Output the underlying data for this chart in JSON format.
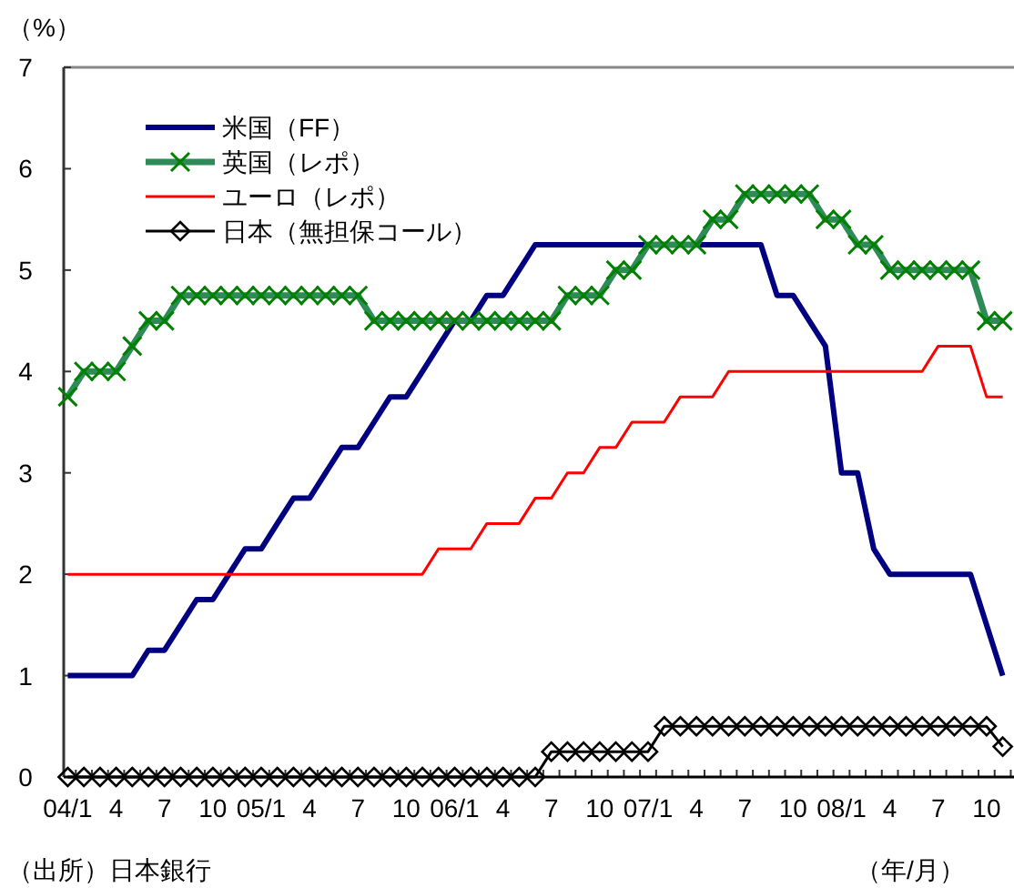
{
  "chart_data": {
    "type": "line",
    "ylabel": "（%）",
    "xlabel": "（年/月）",
    "annotations": [
      "（出所）日本銀行"
    ],
    "categories": [
      "04/1",
      null,
      null,
      "4",
      null,
      null,
      "7",
      null,
      null,
      "10",
      null,
      null,
      "05/1",
      null,
      null,
      "4",
      null,
      null,
      "7",
      null,
      null,
      "10",
      null,
      null,
      "06/1",
      null,
      null,
      "4",
      null,
      null,
      "7",
      null,
      null,
      "10",
      null,
      null,
      "07/1",
      null,
      null,
      "4",
      null,
      null,
      "7",
      null,
      null,
      "10",
      null,
      null,
      "08/1",
      null,
      null,
      "4",
      null,
      null,
      "7",
      null,
      null,
      "10",
      null
    ],
    "ylim": [
      0,
      7
    ],
    "yticks": [
      0,
      1,
      2,
      3,
      4,
      5,
      6,
      7
    ],
    "grid": false,
    "legend": "top left",
    "series": [
      {
        "name": "米国（FF）",
        "color": "#000080",
        "marker": "none",
        "values": [
          1,
          1,
          1,
          1,
          1,
          1.25,
          1.25,
          1.5,
          1.75,
          1.75,
          2,
          2.25,
          2.25,
          2.5,
          2.75,
          2.75,
          3,
          3.25,
          3.25,
          3.5,
          3.75,
          3.75,
          4,
          4.25,
          4.5,
          4.5,
          4.75,
          4.75,
          5,
          5.25,
          5.25,
          5.25,
          5.25,
          5.25,
          5.25,
          5.25,
          5.25,
          5.25,
          5.25,
          5.25,
          5.25,
          5.25,
          5.25,
          5.25,
          4.75,
          4.75,
          4.5,
          4.25,
          3,
          3,
          2.25,
          2,
          2,
          2,
          2,
          2,
          2,
          1.5,
          1
        ]
      },
      {
        "name": "英国（レポ）",
        "color": "#2e8b57",
        "marker": "cross",
        "values": [
          3.75,
          4,
          4,
          4,
          4.25,
          4.5,
          4.5,
          4.75,
          4.75,
          4.75,
          4.75,
          4.75,
          4.75,
          4.75,
          4.75,
          4.75,
          4.75,
          4.75,
          4.75,
          4.5,
          4.5,
          4.5,
          4.5,
          4.5,
          4.5,
          4.5,
          4.5,
          4.5,
          4.5,
          4.5,
          4.5,
          4.75,
          4.75,
          4.75,
          5,
          5,
          5.25,
          5.25,
          5.25,
          5.25,
          5.5,
          5.5,
          5.75,
          5.75,
          5.75,
          5.75,
          5.75,
          5.5,
          5.5,
          5.25,
          5.25,
          5,
          5,
          5,
          5,
          5,
          5,
          4.5,
          4.5
        ]
      },
      {
        "name": "ユーロ（レポ）",
        "color": "#ff0000",
        "marker": "none",
        "values": [
          2,
          2,
          2,
          2,
          2,
          2,
          2,
          2,
          2,
          2,
          2,
          2,
          2,
          2,
          2,
          2,
          2,
          2,
          2,
          2,
          2,
          2,
          2,
          2.25,
          2.25,
          2.25,
          2.5,
          2.5,
          2.5,
          2.75,
          2.75,
          3,
          3,
          3.25,
          3.25,
          3.5,
          3.5,
          3.5,
          3.75,
          3.75,
          3.75,
          4,
          4,
          4,
          4,
          4,
          4,
          4,
          4,
          4,
          4,
          4,
          4,
          4,
          4.25,
          4.25,
          4.25,
          3.75,
          3.75
        ]
      },
      {
        "name": "日本（無担保コール）",
        "color": "#000000",
        "marker": "diamond",
        "values": [
          0,
          0,
          0,
          0,
          0,
          0,
          0,
          0,
          0,
          0,
          0,
          0,
          0,
          0,
          0,
          0,
          0,
          0,
          0,
          0,
          0,
          0,
          0,
          0,
          0,
          0,
          0,
          0,
          0,
          0,
          0.25,
          0.25,
          0.25,
          0.25,
          0.25,
          0.25,
          0.25,
          0.5,
          0.5,
          0.5,
          0.5,
          0.5,
          0.5,
          0.5,
          0.5,
          0.5,
          0.5,
          0.5,
          0.5,
          0.5,
          0.5,
          0.5,
          0.5,
          0.5,
          0.5,
          0.5,
          0.5,
          0.5,
          0.3
        ]
      }
    ]
  }
}
